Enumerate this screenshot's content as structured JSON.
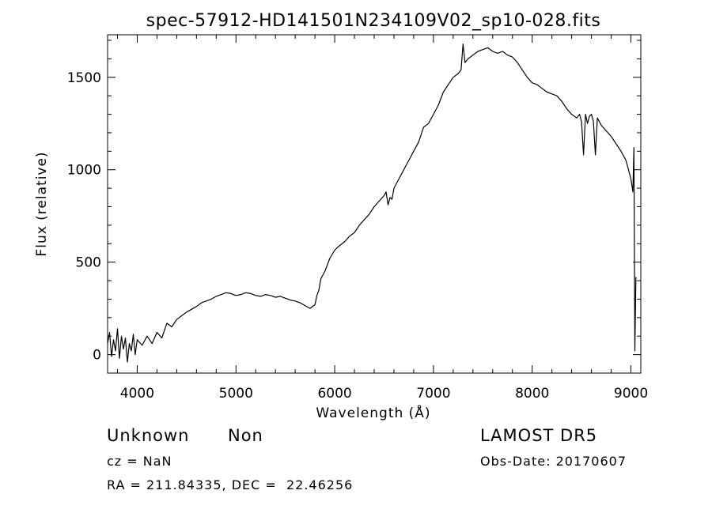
{
  "chart_data": {
    "type": "line",
    "title": "spec-57912-HD141501N234109V02_sp10-028.fits",
    "xlabel": "Wavelength (Å)",
    "ylabel": "Flux (relative)",
    "xlim": [
      3700,
      9100
    ],
    "ylim": [
      -100,
      1730
    ],
    "xticks": [
      4000,
      5000,
      6000,
      7000,
      8000,
      9000
    ],
    "yticks": [
      0,
      500,
      1000,
      1500
    ],
    "grid": false,
    "legend": "none",
    "line_color": "#000000",
    "series": [
      {
        "x": [
          3700,
          3720,
          3740,
          3760,
          3780,
          3800,
          3820,
          3840,
          3860,
          3880,
          3900,
          3920,
          3940,
          3960,
          3980,
          4000,
          4050,
          4100,
          4150,
          4200,
          4250,
          4300,
          4350,
          4400,
          4450,
          4500,
          4550,
          4600,
          4650,
          4700,
          4750,
          4800,
          4850,
          4900,
          4950,
          5000,
          5050,
          5100,
          5150,
          5200,
          5250,
          5300,
          5350,
          5400,
          5450,
          5500,
          5550,
          5600,
          5650,
          5700,
          5750,
          5800,
          5820,
          5840,
          5860,
          5880,
          5900,
          5950,
          6000,
          6050,
          6100,
          6150,
          6200,
          6250,
          6300,
          6350,
          6400,
          6450,
          6500,
          6520,
          6540,
          6560,
          6580,
          6600,
          6650,
          6700,
          6750,
          6800,
          6850,
          6900,
          6950,
          7000,
          7050,
          7100,
          7150,
          7200,
          7250,
          7280,
          7300,
          7320,
          7350,
          7400,
          7450,
          7500,
          7550,
          7600,
          7650,
          7700,
          7750,
          7800,
          7850,
          7900,
          7950,
          8000,
          8050,
          8100,
          8150,
          8200,
          8250,
          8300,
          8350,
          8400,
          8450,
          8480,
          8500,
          8520,
          8540,
          8560,
          8580,
          8600,
          8620,
          8640,
          8660,
          8680,
          8700,
          8750,
          8800,
          8850,
          8900,
          8950,
          9000,
          9020,
          9030,
          9040,
          9050
        ],
        "values": [
          60,
          120,
          -10,
          80,
          20,
          140,
          -20,
          100,
          30,
          90,
          -40,
          60,
          20,
          110,
          0,
          80,
          50,
          100,
          60,
          120,
          90,
          170,
          150,
          190,
          210,
          230,
          245,
          260,
          280,
          290,
          300,
          315,
          325,
          335,
          330,
          320,
          325,
          335,
          330,
          320,
          315,
          325,
          320,
          310,
          315,
          305,
          295,
          290,
          280,
          265,
          250,
          270,
          320,
          350,
          410,
          430,
          450,
          520,
          565,
          590,
          610,
          640,
          660,
          700,
          730,
          760,
          800,
          830,
          860,
          880,
          810,
          850,
          840,
          900,
          950,
          1000,
          1050,
          1100,
          1150,
          1230,
          1250,
          1300,
          1350,
          1420,
          1460,
          1500,
          1520,
          1540,
          1680,
          1580,
          1600,
          1620,
          1640,
          1650,
          1660,
          1640,
          1630,
          1640,
          1620,
          1610,
          1580,
          1540,
          1500,
          1470,
          1460,
          1440,
          1420,
          1410,
          1400,
          1370,
          1330,
          1300,
          1280,
          1300,
          1260,
          1080,
          1300,
          1250,
          1290,
          1300,
          1260,
          1080,
          1280,
          1260,
          1240,
          1210,
          1180,
          1140,
          1100,
          1050,
          950,
          880,
          1120,
          20,
          420
        ]
      }
    ]
  },
  "info": {
    "object_class": "Unknown",
    "subclass": "Non",
    "survey": "LAMOST DR5",
    "redshift": "cz = NaN",
    "obs_date": "Obs-Date: 20170607",
    "coords": "RA = 211.84335, DEC =  22.46256"
  }
}
